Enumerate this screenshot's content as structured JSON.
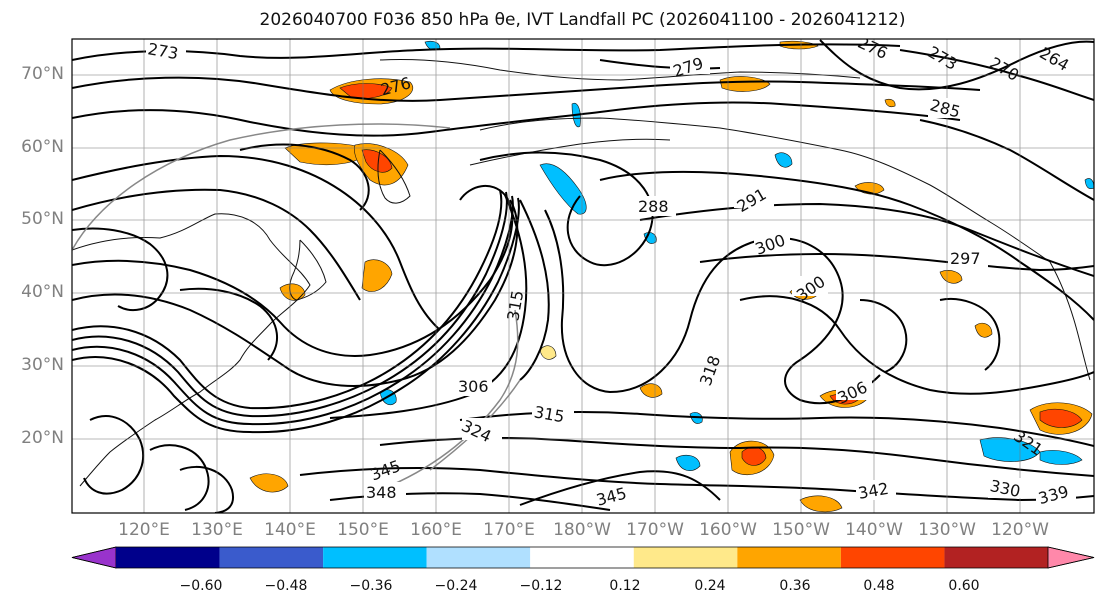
{
  "title": "2026040700 F036 850 hPa θe, IVT Landfall PC (2026041100 - 2026041212)",
  "lat_labels": [
    "70°N",
    "60°N",
    "50°N",
    "40°N",
    "30°N",
    "20°N"
  ],
  "lon_labels": [
    "120°E",
    "130°E",
    "140°E",
    "150°E",
    "160°E",
    "170°E",
    "180°W",
    "170°W",
    "160°W",
    "150°W",
    "140°W",
    "130°W",
    "120°W"
  ],
  "contour_labels": [
    "273",
    "276",
    "276",
    "279",
    "273",
    "270",
    "264",
    "285",
    "288",
    "291",
    "300",
    "297",
    "300",
    "306",
    "306",
    "315",
    "315",
    "318",
    "321",
    "324",
    "348",
    "345",
    "345",
    "342",
    "330",
    "339"
  ],
  "colorbar": {
    "ticks": [
      "−0.60",
      "−0.48",
      "−0.36",
      "−0.24",
      "−0.12",
      "0.12",
      "0.24",
      "0.36",
      "0.48",
      "0.60"
    ],
    "colors": [
      "#9933cc",
      "#00008b",
      "#3a5bcc",
      "#00bfff",
      "#b0e0ff",
      "#ffffff",
      "#ffe98a",
      "#ffa500",
      "#ff4500",
      "#b22222",
      "#ff88aa"
    ]
  },
  "colors": {
    "positive_orange": "#ffa500",
    "positive_red": "#ff4500",
    "positive_yellow": "#ffe98a",
    "negative_blue": "#00bfff"
  }
}
